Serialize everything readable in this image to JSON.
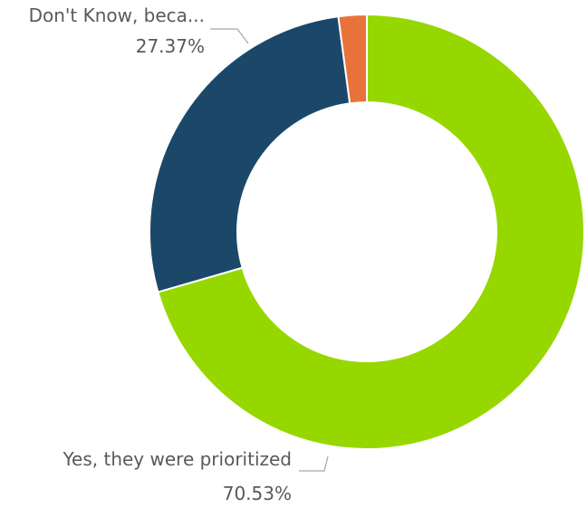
{
  "chart_data": {
    "type": "pie",
    "variant": "donut",
    "title": "",
    "slices": [
      {
        "label": "Yes, they were prioritized",
        "value": 70.53,
        "value_label": "70.53%",
        "color": "#97d700"
      },
      {
        "label": "Don't Know, beca...",
        "value": 27.37,
        "value_label": "27.37%",
        "color": "#1b4868"
      },
      {
        "label": "",
        "value": 2.1,
        "value_label": "",
        "color": "#e8733a"
      }
    ]
  }
}
